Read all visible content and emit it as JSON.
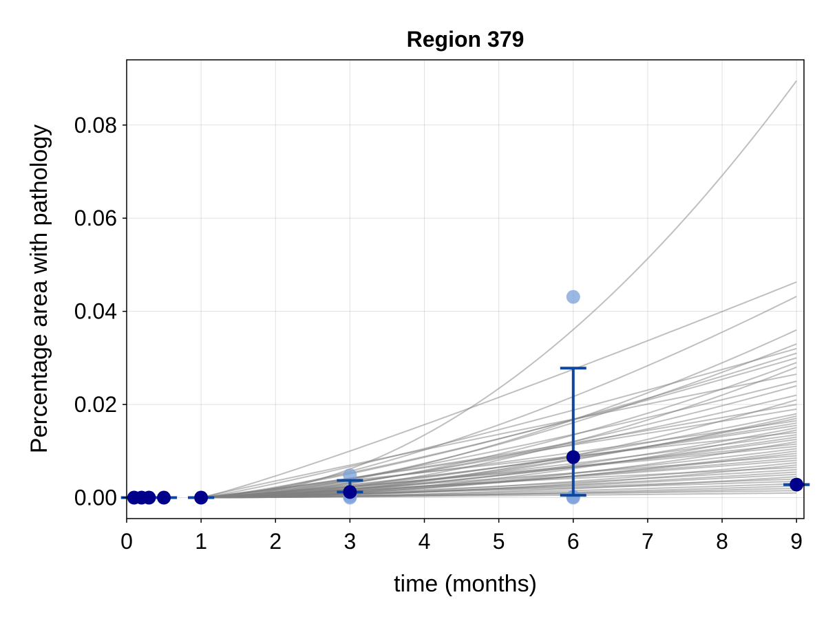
{
  "chart_data": {
    "type": "scatter",
    "title": "Region 379",
    "xlabel": "time (months)",
    "ylabel": "Percentage area with pathology",
    "xlim": [
      0,
      9.1
    ],
    "ylim": [
      -0.0045,
      0.094
    ],
    "xticks": [
      {
        "value": 0,
        "label": "0"
      },
      {
        "value": 1,
        "label": "1"
      },
      {
        "value": 2,
        "label": "2"
      },
      {
        "value": 3,
        "label": "3"
      },
      {
        "value": 4,
        "label": "4"
      },
      {
        "value": 5,
        "label": "5"
      },
      {
        "value": 6,
        "label": "6"
      },
      {
        "value": 7,
        "label": "7"
      },
      {
        "value": 8,
        "label": "8"
      },
      {
        "value": 9,
        "label": "9"
      }
    ],
    "yticks": [
      {
        "value": 0.0,
        "label": "0.00"
      },
      {
        "value": 0.02,
        "label": "0.02"
      },
      {
        "value": 0.04,
        "label": "0.04"
      },
      {
        "value": 0.06,
        "label": "0.06"
      },
      {
        "value": 0.08,
        "label": "0.08"
      }
    ],
    "grid": true,
    "colors": {
      "posterior_lines": "#808080",
      "raw_points": "#7aa0d8",
      "mean_points": "#00008b",
      "error_bars": "#0d47a1"
    },
    "posterior_curves": {
      "description_of_series": "simulated trajectories",
      "start_x": 1,
      "end_values_at_9": [
        0.0895,
        0.0463,
        0.0432,
        0.036,
        0.033,
        0.032,
        0.031,
        0.03,
        0.029,
        0.028,
        0.0265,
        0.025,
        0.024,
        0.022,
        0.021,
        0.02,
        0.019,
        0.018,
        0.0175,
        0.017,
        0.0165,
        0.016,
        0.0155,
        0.015,
        0.0145,
        0.014,
        0.0135,
        0.013,
        0.0125,
        0.012,
        0.0115,
        0.011,
        0.0105,
        0.01,
        0.0095,
        0.009,
        0.0085,
        0.008,
        0.0075,
        0.007,
        0.0065,
        0.006,
        0.0055,
        0.005,
        0.0045,
        0.004,
        0.0035,
        0.003,
        0.0025,
        0.002,
        0.0015,
        0.001
      ]
    },
    "raw_points": [
      {
        "x": 0.1,
        "y": 0.0
      },
      {
        "x": 0.2,
        "y": 0.0
      },
      {
        "x": 0.3,
        "y": 0.0
      },
      {
        "x": 0.5,
        "y": 0.0
      },
      {
        "x": 1,
        "y": 0.0
      },
      {
        "x": 3,
        "y": 0.0048
      },
      {
        "x": 3,
        "y": 0.0
      },
      {
        "x": 3,
        "y": 0.0003
      },
      {
        "x": 6,
        "y": 0.0431
      },
      {
        "x": 6,
        "y": 0.0
      },
      {
        "x": 6,
        "y": 0.0002
      }
    ],
    "mean_points": [
      {
        "x": 0.1,
        "y": 0.0
      },
      {
        "x": 0.2,
        "y": 0.0
      },
      {
        "x": 0.3,
        "y": 0.0
      },
      {
        "x": 0.5,
        "y": 0.0
      },
      {
        "x": 1,
        "y": 0.0
      },
      {
        "x": 3,
        "y": 0.0012
      },
      {
        "x": 6,
        "y": 0.0087
      },
      {
        "x": 9,
        "y": 0.0028
      }
    ],
    "error_bars": [
      {
        "x": 0.1,
        "low": 0.0,
        "high": 0.0
      },
      {
        "x": 0.2,
        "low": 0.0,
        "high": 0.0
      },
      {
        "x": 0.3,
        "low": 0.0,
        "high": 0.0
      },
      {
        "x": 0.5,
        "low": 0.0,
        "high": 0.0
      },
      {
        "x": 1,
        "low": 0.0,
        "high": 0.0
      },
      {
        "x": 3,
        "low": 0.0012,
        "high": 0.0037
      },
      {
        "x": 6,
        "low": 0.0005,
        "high": 0.0278
      },
      {
        "x": 9,
        "low": 0.0028,
        "high": 0.0028
      }
    ]
  }
}
